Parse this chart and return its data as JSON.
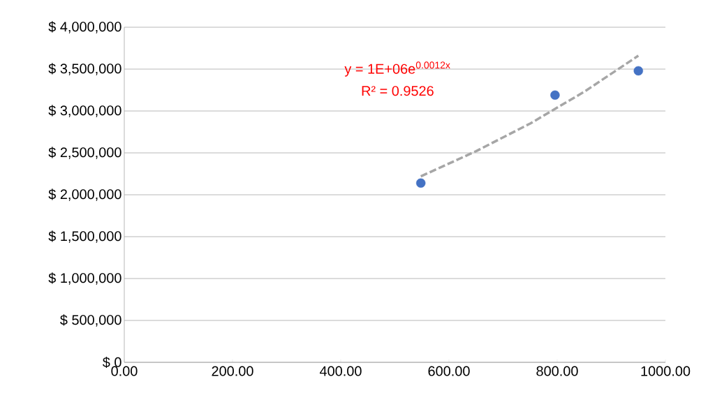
{
  "chart_data": {
    "type": "scatter",
    "xlim": [
      0,
      1000
    ],
    "xticks": [
      {
        "value": 0,
        "label": "0.00"
      },
      {
        "value": 200,
        "label": "200.00"
      },
      {
        "value": 400,
        "label": "400.00"
      },
      {
        "value": 600,
        "label": "600.00"
      },
      {
        "value": 800,
        "label": "800.00"
      },
      {
        "value": 1000,
        "label": "1000.00"
      }
    ],
    "ylim": [
      0,
      4000000
    ],
    "yticks": [
      {
        "value": 0,
        "label": "$ 0"
      },
      {
        "value": 500000,
        "label": "$ 500,000"
      },
      {
        "value": 1000000,
        "label": "$ 1,000,000"
      },
      {
        "value": 1500000,
        "label": "$ 1,500,000"
      },
      {
        "value": 2000000,
        "label": "$ 2,000,000"
      },
      {
        "value": 2500000,
        "label": "$ 2,500,000"
      },
      {
        "value": 3000000,
        "label": "$ 3,000,000"
      },
      {
        "value": 3500000,
        "label": "$ 3,500,000"
      },
      {
        "value": 4000000,
        "label": "$ 4,000,000"
      }
    ],
    "grid": "y",
    "series": [
      {
        "color": "#4472c4",
        "marker": "circle",
        "x": [
          548,
          796,
          950
        ],
        "values": [
          2140000,
          3190000,
          3480000
        ]
      },
      {
        "type": "line",
        "color": "#a6a6a6",
        "line_style": "dashed",
        "x": [
          548,
          650,
          750,
          850,
          950
        ],
        "values": [
          2220000,
          2520000,
          2850000,
          3230000,
          3660000
        ]
      }
    ],
    "annotations": [
      "y = 1E+06e$^{0.0012x}$",
      "R² = 0.9526"
    ]
  }
}
